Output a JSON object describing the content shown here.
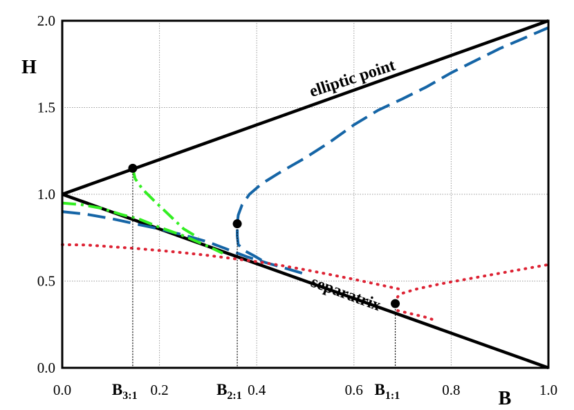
{
  "chart_data": {
    "type": "line",
    "xlabel": "B",
    "ylabel": "H",
    "xlim": [
      0,
      1
    ],
    "ylim": [
      0,
      2
    ],
    "grid": true,
    "x_ticks": [
      "0.0",
      "0.2",
      "0.4",
      "0.6",
      "0.8",
      "1.0"
    ],
    "y_ticks": [
      "0.0",
      "0.5",
      "1.0",
      "1.5",
      "2.0"
    ],
    "colors": {
      "axes": "#000000",
      "blue": "#1565a6",
      "green": "#33ee22",
      "red": "#dd2233",
      "grid": "#999999"
    },
    "annotations": [
      {
        "text": "elliptic point",
        "x": 0.6,
        "y": 1.64,
        "angle": -18
      },
      {
        "text": "separatrix",
        "x": 0.58,
        "y": 0.4,
        "angle": 20
      }
    ],
    "special_points": [
      {
        "base": "B",
        "sub": "3:1",
        "x": 0.145,
        "y": 1.15
      },
      {
        "base": "B",
        "sub": "2:1",
        "x": 0.36,
        "y": 0.83
      },
      {
        "base": "B",
        "sub": "1:1",
        "x": 0.685,
        "y": 0.37
      }
    ],
    "series": [
      {
        "style": "solid-black",
        "points": [
          [
            0,
            1
          ],
          [
            1,
            2
          ]
        ]
      },
      {
        "style": "solid-black",
        "points": [
          [
            0,
            1
          ],
          [
            1,
            0
          ]
        ]
      },
      {
        "style": "dashed-blue",
        "points": [
          [
            0.0,
            0.9
          ],
          [
            0.05,
            0.885
          ],
          [
            0.1,
            0.86
          ],
          [
            0.15,
            0.83
          ],
          [
            0.2,
            0.8
          ],
          [
            0.25,
            0.765
          ],
          [
            0.3,
            0.725
          ],
          [
            0.35,
            0.672
          ],
          [
            0.38,
            0.64
          ],
          [
            0.42,
            0.605
          ],
          [
            0.46,
            0.573
          ],
          [
            0.5,
            0.54
          ]
        ]
      },
      {
        "style": "dashed-blue",
        "points": [
          [
            0.41,
            0.62
          ],
          [
            0.395,
            0.645
          ],
          [
            0.375,
            0.675
          ],
          [
            0.362,
            0.71
          ],
          [
            0.36,
            0.76
          ],
          [
            0.36,
            0.83
          ],
          [
            0.362,
            0.88
          ],
          [
            0.37,
            0.94
          ],
          [
            0.385,
            1.0
          ],
          [
            0.41,
            1.06
          ],
          [
            0.45,
            1.13
          ],
          [
            0.5,
            1.21
          ],
          [
            0.55,
            1.3
          ],
          [
            0.6,
            1.4
          ],
          [
            0.65,
            1.485
          ],
          [
            0.7,
            1.55
          ],
          [
            0.75,
            1.62
          ],
          [
            0.8,
            1.7
          ],
          [
            0.85,
            1.77
          ],
          [
            0.9,
            1.84
          ],
          [
            0.95,
            1.9
          ],
          [
            1.0,
            1.96
          ]
        ]
      },
      {
        "style": "dashdot-green",
        "points": [
          [
            0.0,
            0.95
          ],
          [
            0.04,
            0.94
          ],
          [
            0.08,
            0.92
          ],
          [
            0.12,
            0.885
          ],
          [
            0.16,
            0.855
          ],
          [
            0.2,
            0.81
          ],
          [
            0.25,
            0.76
          ],
          [
            0.3,
            0.7
          ],
          [
            0.33,
            0.66
          ]
        ]
      },
      {
        "style": "dashdot-green",
        "points": [
          [
            0.145,
            1.15
          ],
          [
            0.15,
            1.09
          ],
          [
            0.165,
            1.03
          ],
          [
            0.19,
            0.96
          ],
          [
            0.22,
            0.88
          ],
          [
            0.25,
            0.8
          ],
          [
            0.28,
            0.75
          ]
        ]
      },
      {
        "style": "dotted-red",
        "points": [
          [
            0.0,
            0.71
          ],
          [
            0.05,
            0.708
          ],
          [
            0.1,
            0.698
          ],
          [
            0.15,
            0.688
          ],
          [
            0.2,
            0.676
          ],
          [
            0.25,
            0.663
          ],
          [
            0.3,
            0.648
          ],
          [
            0.35,
            0.63
          ],
          [
            0.4,
            0.612
          ],
          [
            0.45,
            0.59
          ],
          [
            0.5,
            0.565
          ],
          [
            0.55,
            0.538
          ],
          [
            0.6,
            0.51
          ],
          [
            0.65,
            0.48
          ],
          [
            0.7,
            0.45
          ]
        ]
      },
      {
        "style": "dotted-red",
        "points": [
          [
            0.685,
            0.37
          ],
          [
            0.69,
            0.41
          ],
          [
            0.7,
            0.43
          ],
          [
            0.73,
            0.455
          ],
          [
            0.78,
            0.485
          ],
          [
            0.85,
            0.52
          ],
          [
            0.92,
            0.555
          ],
          [
            1.0,
            0.595
          ]
        ]
      },
      {
        "style": "dotted-red",
        "points": [
          [
            0.69,
            0.33
          ],
          [
            0.72,
            0.31
          ],
          [
            0.75,
            0.29
          ],
          [
            0.77,
            0.27
          ]
        ]
      }
    ]
  }
}
